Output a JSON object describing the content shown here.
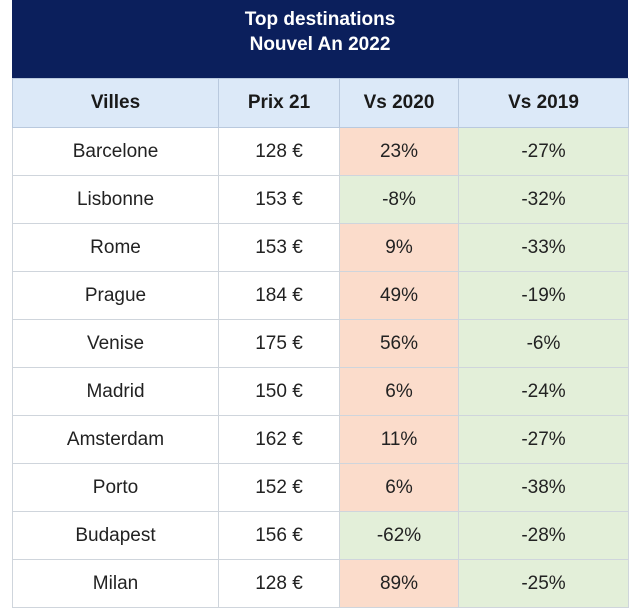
{
  "title": {
    "line1": "Top destinations",
    "line2": "Nouvel An 2022"
  },
  "colors": {
    "header_bg": "#0b1f5c",
    "column_header_bg": "#dce9f8",
    "positive_fill": "#fbdccb",
    "negative_fill": "#e3efd9"
  },
  "chart_data": {
    "type": "table",
    "title": "Top destinations Nouvel An 2022",
    "columns": [
      "Villes",
      "Prix 21",
      "Vs 2020",
      "Vs 2019"
    ],
    "rows": [
      {
        "ville": "Barcelone",
        "prix": "128 €",
        "vs2020": "23%",
        "vs2019": "-27%"
      },
      {
        "ville": "Lisbonne",
        "prix": "153 €",
        "vs2020": "-8%",
        "vs2019": "-32%"
      },
      {
        "ville": "Rome",
        "prix": "153 €",
        "vs2020": "9%",
        "vs2019": "-33%"
      },
      {
        "ville": "Prague",
        "prix": "184 €",
        "vs2020": "49%",
        "vs2019": "-19%"
      },
      {
        "ville": "Venise",
        "prix": "175 €",
        "vs2020": "56%",
        "vs2019": "-6%"
      },
      {
        "ville": "Madrid",
        "prix": "150 €",
        "vs2020": "6%",
        "vs2019": "-24%"
      },
      {
        "ville": "Amsterdam",
        "prix": "162 €",
        "vs2020": "11%",
        "vs2019": "-27%"
      },
      {
        "ville": "Porto",
        "prix": "152 €",
        "vs2020": "6%",
        "vs2019": "-38%"
      },
      {
        "ville": "Budapest",
        "prix": "156 €",
        "vs2020": "-62%",
        "vs2019": "-28%"
      },
      {
        "ville": "Milan",
        "prix": "128 €",
        "vs2020": "89%",
        "vs2019": "-25%"
      }
    ]
  }
}
